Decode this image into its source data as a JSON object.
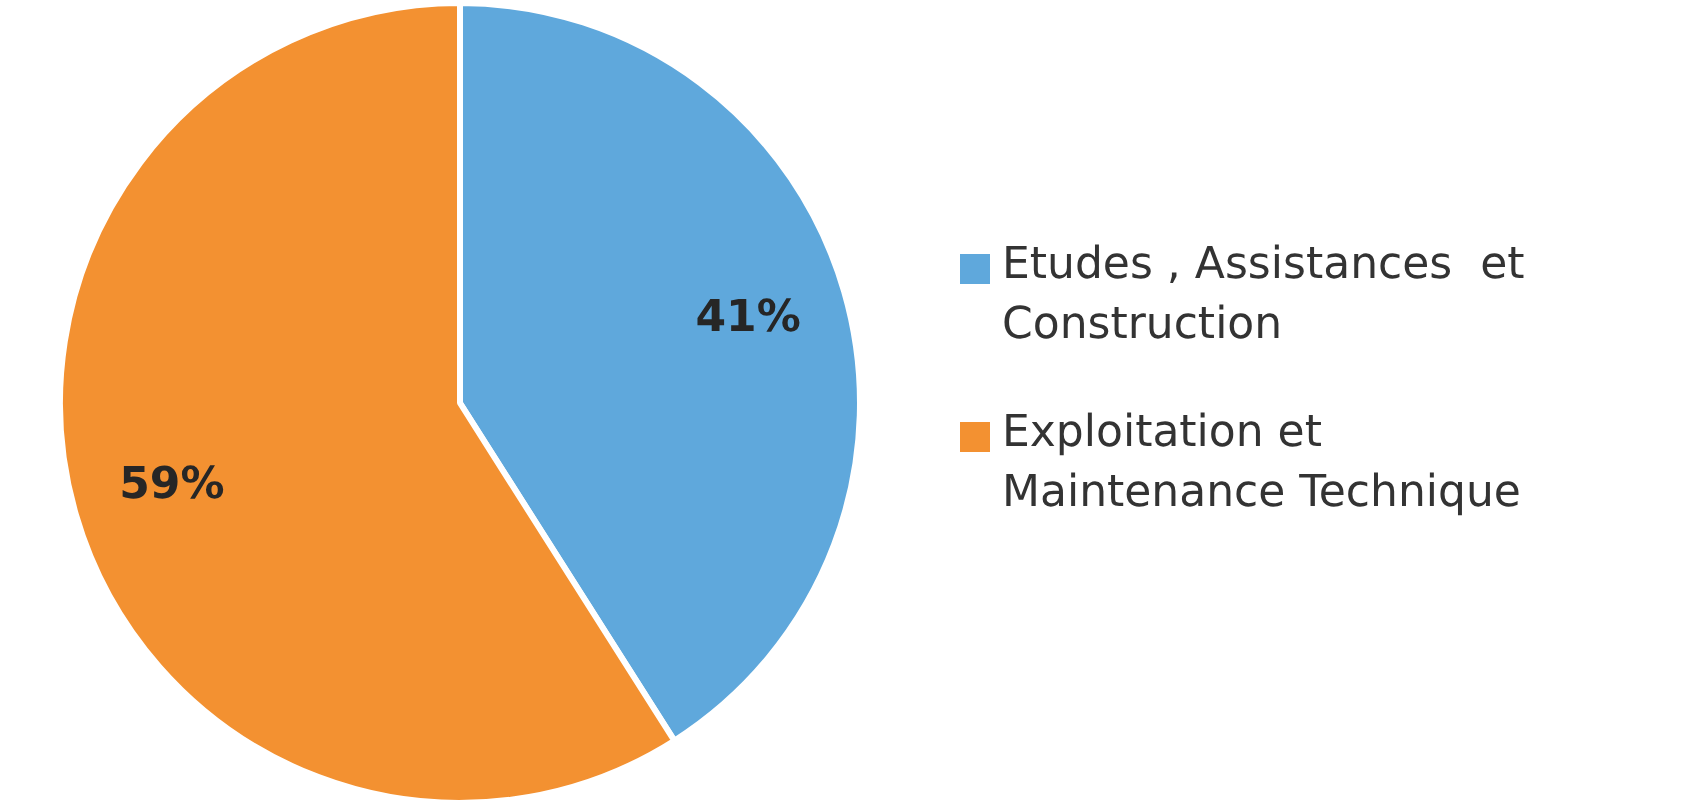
{
  "chart_data": {
    "type": "pie",
    "categories": [
      "Etudes , Assistances  et Construction",
      "Exploitation et Maintenance Technique"
    ],
    "values": [
      41,
      59
    ],
    "value_labels": [
      "41%",
      "59%"
    ],
    "colors": [
      "#5fa8dc",
      "#f39131"
    ],
    "legend": "right"
  }
}
